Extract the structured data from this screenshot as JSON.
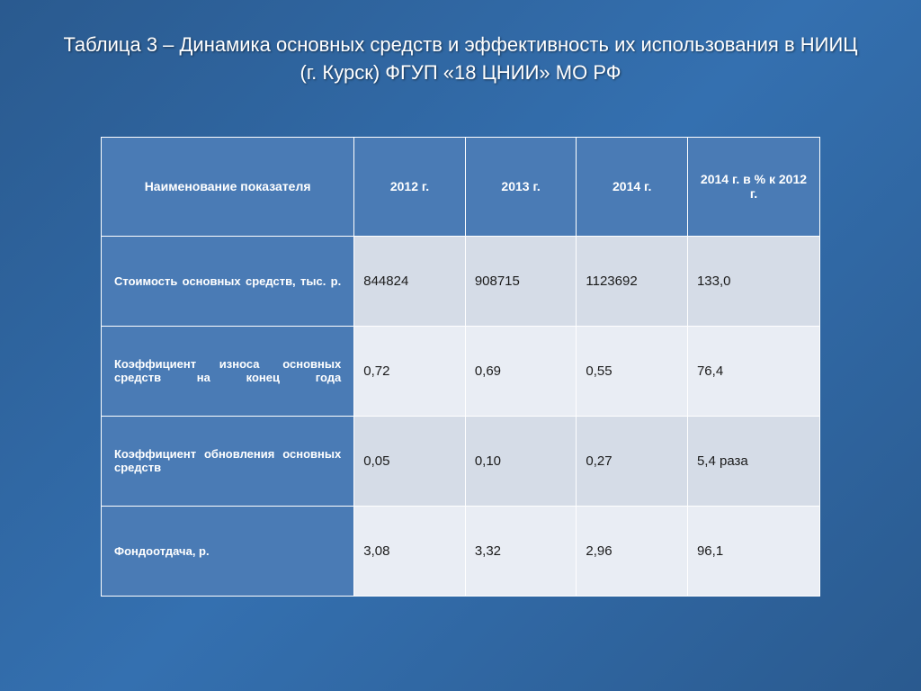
{
  "title": "Таблица 3 – Динамика основных средств и эффективность их использования в НИИЦ (г. Курск) ФГУП «18 ЦНИИ» МО РФ",
  "table": {
    "columns": [
      "Наименование показателя",
      "2012 г.",
      "2013 г.",
      "2014 г.",
      "2014 г. в % к 2012 г."
    ],
    "rows": [
      {
        "label": "Стоимость основных средств, тыс. р.",
        "y2012": "844824",
        "y2013": "908715",
        "y2014": "1123692",
        "pct": "133,0"
      },
      {
        "label": "Коэффициент износа основных средств на конец года",
        "y2012": "0,72",
        "y2013": "0,69",
        "y2014": "0,55",
        "pct": "76,4"
      },
      {
        "label": "Коэффициент обновления основных средств",
        "y2012": "0,05",
        "y2013": "0,10",
        "y2014": "0,27",
        "pct": "5,4 раза"
      },
      {
        "label": "Фондоотдача, р.",
        "y2012": "3,08",
        "y2013": "3,32",
        "y2014": "2,96",
        "pct": "96,1"
      }
    ],
    "header_bg": "#4a7bb5",
    "row_alt_colors": [
      "#d5dce7",
      "#e9edf4"
    ],
    "border_color": "#ffffff",
    "text_color": "#1a1a1a",
    "header_text_color": "#ffffff"
  },
  "slide_bg": "#2a5a8f"
}
